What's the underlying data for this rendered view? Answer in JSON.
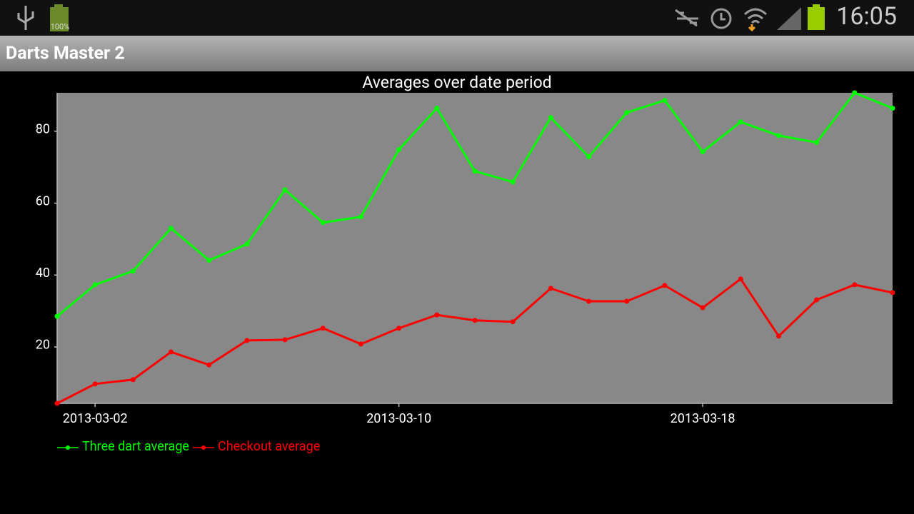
{
  "status_bar": {
    "battery": "100%",
    "time": "16:05"
  },
  "app_bar": {
    "title": "Darts Master 2"
  },
  "chart_data": {
    "type": "line",
    "title": "Averages over date period",
    "x": [
      "2013-03-01",
      "2013-03-02",
      "2013-03-03",
      "2013-03-04",
      "2013-03-05",
      "2013-03-06",
      "2013-03-07",
      "2013-03-08",
      "2013-03-09",
      "2013-03-10",
      "2013-03-11",
      "2013-03-12",
      "2013-03-13",
      "2013-03-14",
      "2013-03-15",
      "2013-03-16",
      "2013-03-17",
      "2013-03-18",
      "2013-03-19",
      "2013-03-20",
      "2013-03-21",
      "2013-03-22",
      "2013-03-23"
    ],
    "series": [
      {
        "name": "Three dart average",
        "color": "#00ff00",
        "values": [
          28.5,
          37.3,
          41.1,
          53.0,
          44.1,
          48.6,
          63.7,
          54.6,
          56.2,
          74.9,
          86.4,
          68.9,
          65.9,
          83.8,
          72.9,
          85.2,
          88.6,
          74.3,
          82.6,
          78.8,
          76.9,
          90.7,
          86.4
        ]
      },
      {
        "name": "Checkout average",
        "color": "#ff0000",
        "values": [
          4.3,
          9.7,
          10.9,
          18.6,
          15.0,
          21.8,
          22.0,
          25.2,
          20.8,
          25.2,
          28.9,
          27.4,
          27.0,
          36.3,
          32.7,
          32.7,
          37.1,
          30.9,
          38.9,
          23.0,
          33.1,
          37.3,
          35.1
        ]
      }
    ],
    "xlim": [
      "2013-03-01",
      "2013-03-23"
    ],
    "xticks": [
      "2013-03-02",
      "2013-03-10",
      "2013-03-18"
    ],
    "ylim": [
      4.3,
      90.7
    ],
    "yticks": [
      20,
      40,
      60,
      80
    ],
    "grid": false,
    "legend": "bottom-left"
  }
}
